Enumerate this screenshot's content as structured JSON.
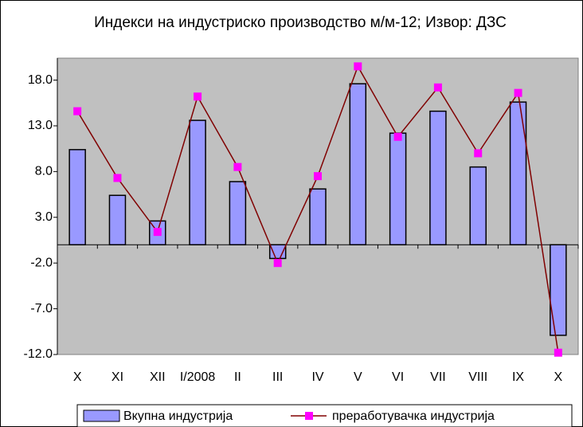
{
  "chart_data": {
    "type": "bar_line",
    "title": "Индекси на индустриско производство м/м-12; Извор: ДЗС",
    "categories": [
      "X",
      "XI",
      "XII",
      "I/2008",
      "II",
      "III",
      "IV",
      "V",
      "VI",
      "VII",
      "VIII",
      "IX",
      "X"
    ],
    "series": [
      {
        "name": "Вкупна индустрија",
        "color": "#9999ff",
        "type": "bar",
        "values": [
          10.4,
          5.4,
          2.6,
          13.6,
          6.9,
          -1.5,
          6.1,
          17.6,
          12.2,
          14.6,
          8.5,
          15.6,
          -9.9
        ]
      },
      {
        "name": "преработувачка индустрија",
        "color": "#800000",
        "marker_color": "#ff00ff",
        "type": "line",
        "values": [
          14.6,
          7.3,
          1.4,
          16.2,
          8.5,
          -2.0,
          7.5,
          19.5,
          11.8,
          17.2,
          10.0,
          16.6,
          -11.8
        ]
      }
    ],
    "ylim": [
      -12,
      20.4
    ],
    "yticks": [
      {
        "value": -12,
        "label": "-12.0"
      },
      {
        "value": -7,
        "label": "-7.0"
      },
      {
        "value": -2,
        "label": "-2.0"
      },
      {
        "value": 3,
        "label": "3.0"
      },
      {
        "value": 8,
        "label": "8.0"
      },
      {
        "value": 13,
        "label": "13.0"
      },
      {
        "value": 18,
        "label": "18.0"
      }
    ],
    "grid": false,
    "legend": "bottom",
    "plot_background": "#c0c0c0"
  }
}
